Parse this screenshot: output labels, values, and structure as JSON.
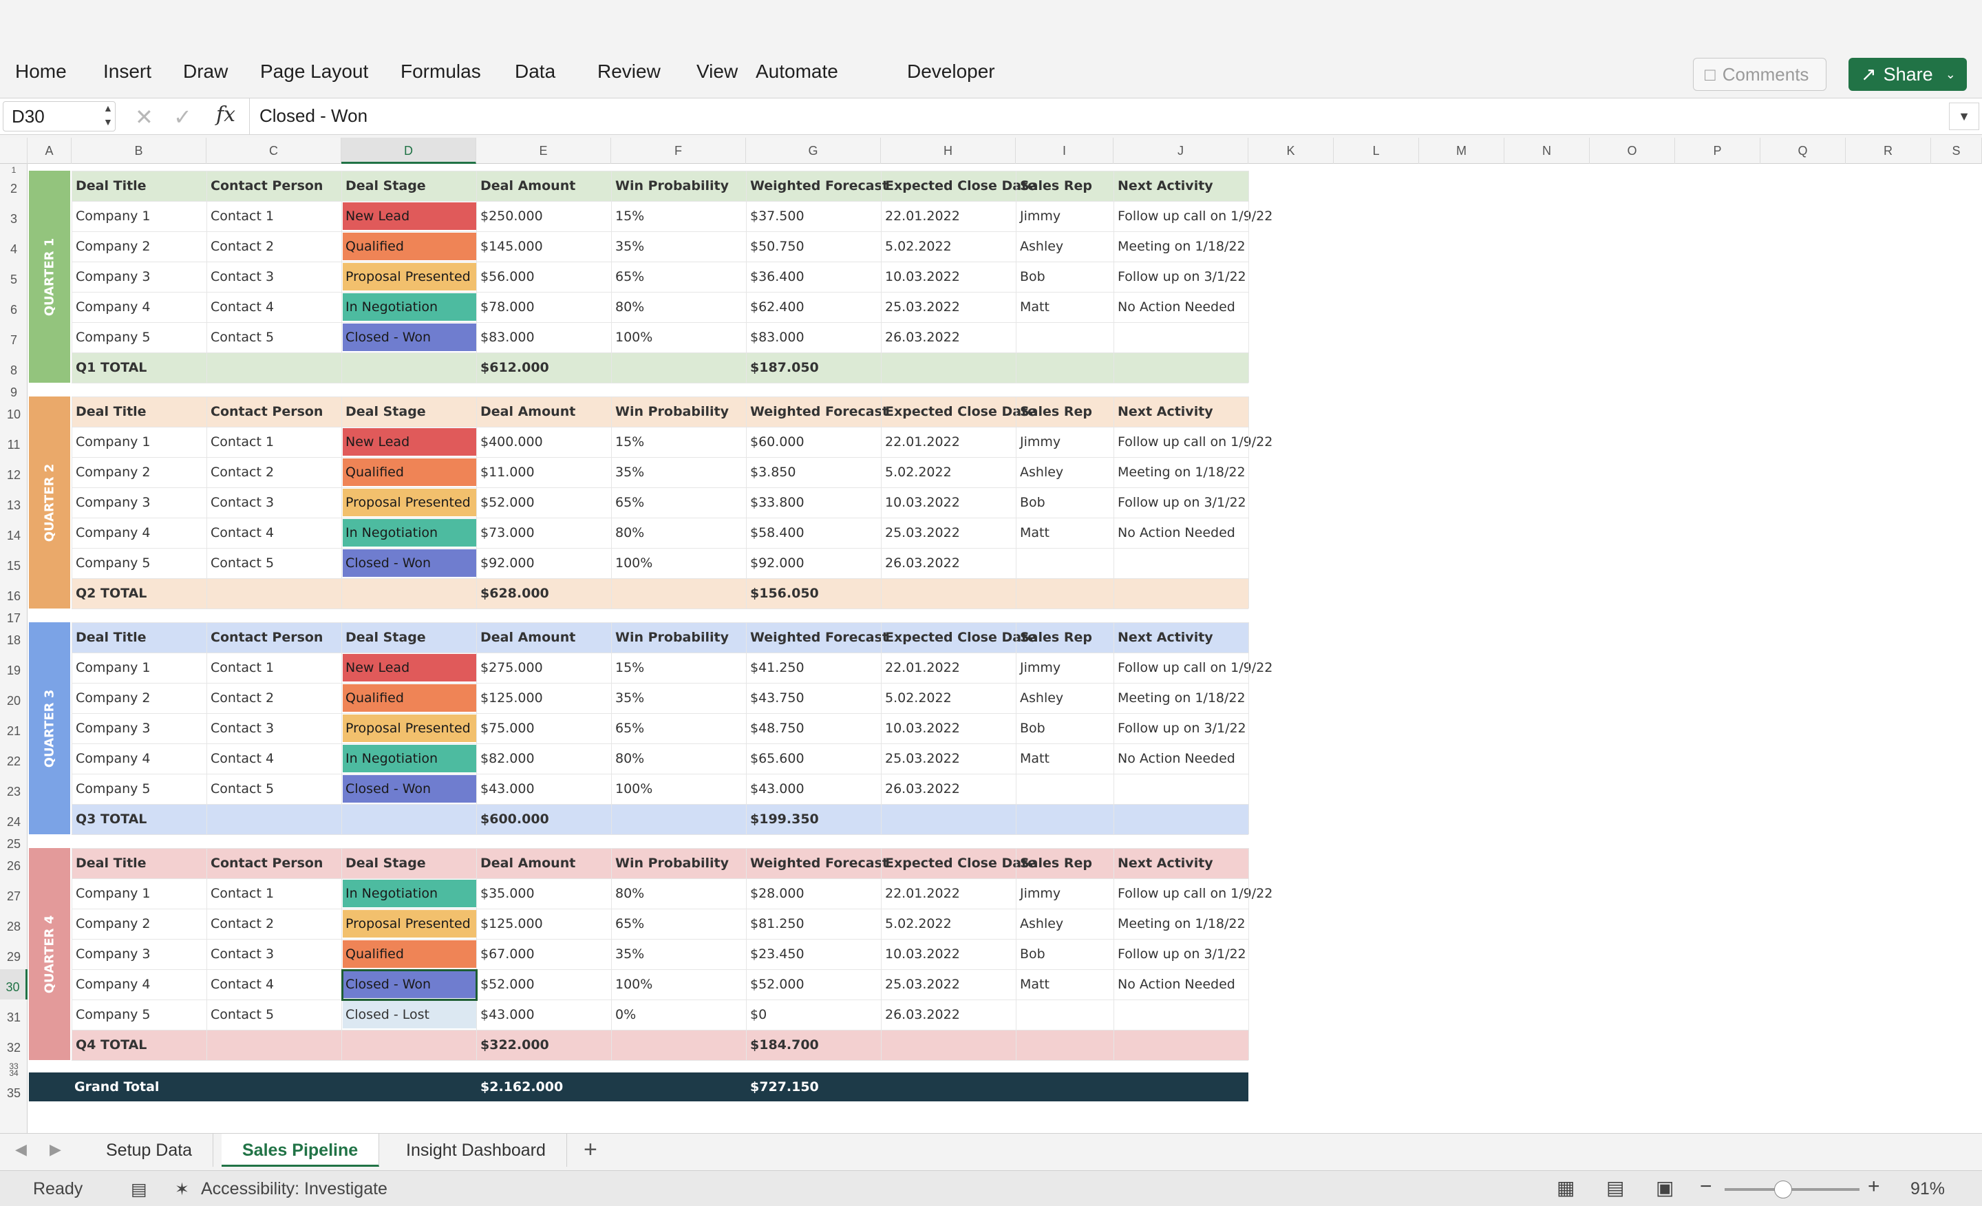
{
  "ribbon": {
    "tabs": [
      "Home",
      "Insert",
      "Draw",
      "Page Layout",
      "Formulas",
      "Data",
      "Review",
      "View",
      "Automate",
      "Developer"
    ],
    "comments_label": "Comments",
    "share_label": "Share"
  },
  "formula_bar": {
    "cell_ref": "D30",
    "value": "Closed - Won"
  },
  "columns": [
    "A",
    "B",
    "C",
    "D",
    "E",
    "F",
    "G",
    "H",
    "I",
    "J",
    "K",
    "L",
    "M",
    "N",
    "O",
    "P",
    "Q",
    "R",
    "S"
  ],
  "rows": [
    "1",
    "2",
    "3",
    "4",
    "5",
    "6",
    "7",
    "8",
    "9",
    "10",
    "11",
    "12",
    "13",
    "14",
    "15",
    "16",
    "17",
    "18",
    "19",
    "20",
    "21",
    "22",
    "23",
    "24",
    "25",
    "26",
    "27",
    "28",
    "29",
    "30",
    "31",
    "32",
    "33",
    "34",
    "35"
  ],
  "headers": [
    "Deal Title",
    "Contact Person",
    "Deal Stage",
    "Deal Amount",
    "Win Probability",
    "Weighted Forecast",
    "Expected Close Date",
    "Sales Rep",
    "Next Activity"
  ],
  "stage_colors": {
    "New Lead": "#e05a5a",
    "Qualified": "#ef8456",
    "Proposal Presented": "#f2c06d",
    "In Negotiation": "#4dbba0",
    "Closed - Won": "#6f7dcf",
    "Closed - Lost": "#dce8f2"
  },
  "quarters": [
    {
      "label": "QUARTER 1",
      "band_color": "#93c47d",
      "tint": "#dcead5",
      "deals": [
        [
          "Company 1",
          "Contact 1",
          "New Lead",
          "$250.000",
          "15%",
          "$37.500",
          "22.01.2022",
          "Jimmy",
          "Follow up call on 1/9/22"
        ],
        [
          "Company 2",
          "Contact 2",
          "Qualified",
          "$145.000",
          "35%",
          "$50.750",
          "5.02.2022",
          "Ashley",
          "Meeting on 1/18/22"
        ],
        [
          "Company 3",
          "Contact 3",
          "Proposal Presented",
          "$56.000",
          "65%",
          "$36.400",
          "10.03.2022",
          "Bob",
          "Follow up on 3/1/22"
        ],
        [
          "Company 4",
          "Contact 4",
          "In Negotiation",
          "$78.000",
          "80%",
          "$62.400",
          "25.03.2022",
          "Matt",
          "No Action Needed"
        ],
        [
          "Company 5",
          "Contact 5",
          "Closed - Won",
          "$83.000",
          "100%",
          "$83.000",
          "26.03.2022",
          "",
          ""
        ]
      ],
      "total": {
        "label": "Q1 TOTAL",
        "amount": "$612.000",
        "forecast": "$187.050"
      }
    },
    {
      "label": "QUARTER 2",
      "band_color": "#eaa96a",
      "tint": "#f9e5d3",
      "deals": [
        [
          "Company 1",
          "Contact 1",
          "New Lead",
          "$400.000",
          "15%",
          "$60.000",
          "22.01.2022",
          "Jimmy",
          "Follow up call on 1/9/22"
        ],
        [
          "Company 2",
          "Contact 2",
          "Qualified",
          "$11.000",
          "35%",
          "$3.850",
          "5.02.2022",
          "Ashley",
          "Meeting on 1/18/22"
        ],
        [
          "Company 3",
          "Contact 3",
          "Proposal Presented",
          "$52.000",
          "65%",
          "$33.800",
          "10.03.2022",
          "Bob",
          "Follow up on 3/1/22"
        ],
        [
          "Company 4",
          "Contact 4",
          "In Negotiation",
          "$73.000",
          "80%",
          "$58.400",
          "25.03.2022",
          "Matt",
          "No Action Needed"
        ],
        [
          "Company 5",
          "Contact 5",
          "Closed - Won",
          "$92.000",
          "100%",
          "$92.000",
          "26.03.2022",
          "",
          ""
        ]
      ],
      "total": {
        "label": "Q2 TOTAL",
        "amount": "$628.000",
        "forecast": "$156.050"
      }
    },
    {
      "label": "QUARTER 3",
      "band_color": "#7ba3e6",
      "tint": "#d1def6",
      "deals": [
        [
          "Company 1",
          "Contact 1",
          "New Lead",
          "$275.000",
          "15%",
          "$41.250",
          "22.01.2022",
          "Jimmy",
          "Follow up call on 1/9/22"
        ],
        [
          "Company 2",
          "Contact 2",
          "Qualified",
          "$125.000",
          "35%",
          "$43.750",
          "5.02.2022",
          "Ashley",
          "Meeting on 1/18/22"
        ],
        [
          "Company 3",
          "Contact 3",
          "Proposal Presented",
          "$75.000",
          "65%",
          "$48.750",
          "10.03.2022",
          "Bob",
          "Follow up on 3/1/22"
        ],
        [
          "Company 4",
          "Contact 4",
          "In Negotiation",
          "$82.000",
          "80%",
          "$65.600",
          "25.03.2022",
          "Matt",
          "No Action Needed"
        ],
        [
          "Company 5",
          "Contact 5",
          "Closed - Won",
          "$43.000",
          "100%",
          "$43.000",
          "26.03.2022",
          "",
          ""
        ]
      ],
      "total": {
        "label": "Q3 TOTAL",
        "amount": "$600.000",
        "forecast": "$199.350"
      }
    },
    {
      "label": "QUARTER 4",
      "band_color": "#e39a9a",
      "tint": "#f3d0d0",
      "deals": [
        [
          "Company 1",
          "Contact 1",
          "In Negotiation",
          "$35.000",
          "80%",
          "$28.000",
          "22.01.2022",
          "Jimmy",
          "Follow up call on 1/9/22"
        ],
        [
          "Company 2",
          "Contact 2",
          "Proposal Presented",
          "$125.000",
          "65%",
          "$81.250",
          "5.02.2022",
          "Ashley",
          "Meeting on 1/18/22"
        ],
        [
          "Company 3",
          "Contact 3",
          "Qualified",
          "$67.000",
          "35%",
          "$23.450",
          "10.03.2022",
          "Bob",
          "Follow up on 3/1/22"
        ],
        [
          "Company 4",
          "Contact 4",
          "Closed - Won",
          "$52.000",
          "100%",
          "$52.000",
          "25.03.2022",
          "Matt",
          "No Action Needed"
        ],
        [
          "Company 5",
          "Contact 5",
          "Closed - Lost",
          "$43.000",
          "0%",
          "$0",
          "26.03.2022",
          "",
          ""
        ]
      ],
      "total": {
        "label": "Q4 TOTAL",
        "amount": "$322.000",
        "forecast": "$184.700"
      }
    }
  ],
  "grand_total": {
    "label": "Grand Total",
    "amount": "$2.162.000",
    "forecast": "$727.150"
  },
  "sheet_tabs": [
    "Setup Data",
    "Sales Pipeline",
    "Insight Dashboard"
  ],
  "active_sheet": "Sales Pipeline",
  "status": {
    "ready": "Ready",
    "accessibility": "Accessibility: Investigate",
    "zoom": "91%"
  }
}
